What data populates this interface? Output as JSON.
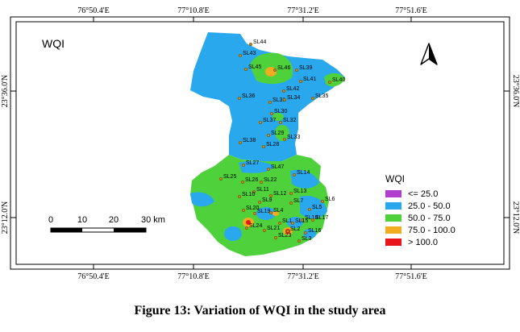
{
  "map": {
    "title": "WQI",
    "coord_labels": {
      "top": [
        "76°50.4'E",
        "77°10.8'E",
        "77°31.2'E",
        "77°51.6'E"
      ],
      "bottom": [
        "76°50.4'E",
        "77°10.8'E",
        "77°31.2'E",
        "77°51.6'E"
      ],
      "left": [
        "23°36.0'N",
        "23°12.0'N"
      ],
      "right": [
        "23°36.0'N",
        "23°12.0'N"
      ]
    },
    "scale_bar": {
      "ticks": [
        "0",
        "10",
        "20",
        "30 km"
      ]
    },
    "north_arrow": "north-arrow-icon",
    "legend": {
      "title": "WQI",
      "classes": [
        {
          "label": "<= 25.0",
          "color": "#b23fcf"
        },
        {
          "label": "25.0 - 50.0",
          "color": "#29a8ee"
        },
        {
          "label": "50.0 - 75.0",
          "color": "#4fd13c"
        },
        {
          "label": "75.0 - 100.0",
          "color": "#f2ac1f"
        },
        {
          "label": "> 100.0",
          "color": "#e8161b"
        }
      ]
    },
    "samples": [
      "SL44",
      "SL43",
      "SL46",
      "SL39",
      "SL45",
      "SL41",
      "SL40",
      "SL42",
      "SL36",
      "SL31",
      "SL34",
      "SL35",
      "SL30",
      "SL37",
      "SL32",
      "SL29",
      "SL33",
      "SL38",
      "SL28",
      "SL27",
      "SL47",
      "SL14",
      "SL25",
      "SL26",
      "SL22",
      "SL11",
      "SL13",
      "SL10",
      "SL12",
      "SL9",
      "SL7",
      "SL6",
      "SL20",
      "SL19",
      "SL4",
      "SL5",
      "SL18",
      "SL1",
      "SL15",
      "SL17",
      "SL24",
      "SL21",
      "SL16",
      "SL23",
      "SL2",
      "SL3"
    ]
  },
  "caption": "Figure 13: Variation of WQI in the study area"
}
